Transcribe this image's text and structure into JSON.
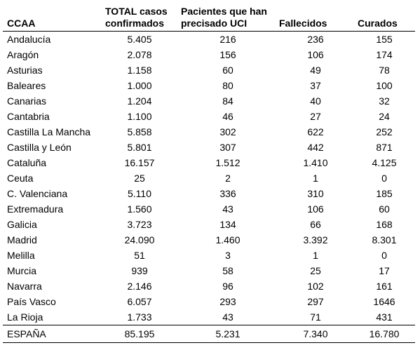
{
  "headers": {
    "ccaa": "CCAA",
    "total_line1": "TOTAL casos",
    "total_line2": "confirmados",
    "uci_line1": "Pacientes que han",
    "uci_line2": "precisado UCI",
    "fallecidos": "Fallecidos",
    "curados": "Curados"
  },
  "rows": [
    {
      "ccaa": "Andalucía",
      "total": "5.405",
      "uci": "216",
      "fallecidos": "236",
      "curados": "155"
    },
    {
      "ccaa": "Aragón",
      "total": "2.078",
      "uci": "156",
      "fallecidos": "106",
      "curados": "174"
    },
    {
      "ccaa": "Asturias",
      "total": "1.158",
      "uci": "60",
      "fallecidos": "49",
      "curados": "78"
    },
    {
      "ccaa": "Baleares",
      "total": "1.000",
      "uci": "80",
      "fallecidos": "37",
      "curados": "100"
    },
    {
      "ccaa": "Canarias",
      "total": "1.204",
      "uci": "84",
      "fallecidos": "40",
      "curados": "32"
    },
    {
      "ccaa": "Cantabria",
      "total": "1.100",
      "uci": "46",
      "fallecidos": "27",
      "curados": "24"
    },
    {
      "ccaa": "Castilla La Mancha",
      "total": "5.858",
      "uci": "302",
      "fallecidos": "622",
      "curados": "252"
    },
    {
      "ccaa": "Castilla y León",
      "total": "5.801",
      "uci": "307",
      "fallecidos": "442",
      "curados": "871"
    },
    {
      "ccaa": "Cataluña",
      "total": "16.157",
      "uci": "1.512",
      "fallecidos": "1.410",
      "curados": "4.125"
    },
    {
      "ccaa": "Ceuta",
      "total": "25",
      "uci": "2",
      "fallecidos": "1",
      "curados": "0"
    },
    {
      "ccaa": "C. Valenciana",
      "total": "5.110",
      "uci": "336",
      "fallecidos": "310",
      "curados": "185"
    },
    {
      "ccaa": "Extremadura",
      "total": "1.560",
      "uci": "43",
      "fallecidos": "106",
      "curados": "60"
    },
    {
      "ccaa": "Galicia",
      "total": "3.723",
      "uci": "134",
      "fallecidos": "66",
      "curados": "168"
    },
    {
      "ccaa": "Madrid",
      "total": "24.090",
      "uci": "1.460",
      "fallecidos": "3.392",
      "curados": "8.301"
    },
    {
      "ccaa": "Melilla",
      "total": "51",
      "uci": "3",
      "fallecidos": "1",
      "curados": "0"
    },
    {
      "ccaa": "Murcia",
      "total": "939",
      "uci": "58",
      "fallecidos": "25",
      "curados": "17"
    },
    {
      "ccaa": "Navarra",
      "total": "2.146",
      "uci": "96",
      "fallecidos": "102",
      "curados": "161"
    },
    {
      "ccaa": "País Vasco",
      "total": "6.057",
      "uci": "293",
      "fallecidos": "297",
      "curados": "1646"
    },
    {
      "ccaa": "La Rioja",
      "total": "1.733",
      "uci": "43",
      "fallecidos": "71",
      "curados": "431"
    }
  ],
  "total_row": {
    "ccaa": "ESPAÑA",
    "total": "85.195",
    "uci": "5.231",
    "fallecidos": "7.340",
    "curados": "16.780"
  }
}
